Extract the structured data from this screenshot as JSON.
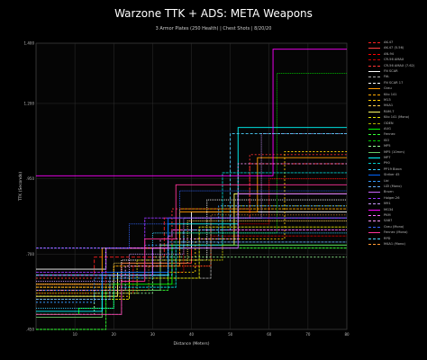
{
  "chart_data": {
    "type": "line",
    "title": "Warzone TTK + ADS: META Weapons",
    "subtitle": "3 Armor Plates (250 Health) | Chest Shots | 8/20/20",
    "xlabel": "Distance (Meters)",
    "ylabel": "TTK (Seconds)",
    "xlim": [
      0,
      80
    ],
    "ylim": [
      0.45,
      1.4
    ],
    "yticks": [
      {
        "v": 0.45,
        "t": ".450"
      },
      {
        "v": 0.7,
        "t": ".700"
      },
      {
        "v": 0.95,
        "t": ".950"
      },
      {
        "v": 1.2,
        "t": "1.200"
      },
      {
        "v": 1.4,
        "t": "1.400"
      }
    ],
    "xticks": [
      {
        "v": 10,
        "t": "10"
      },
      {
        "v": 20,
        "t": "20"
      },
      {
        "v": 30,
        "t": "30"
      },
      {
        "v": 40,
        "t": "40"
      },
      {
        "v": 50,
        "t": "50"
      },
      {
        "v": 60,
        "t": "60"
      },
      {
        "v": 70,
        "t": "70"
      },
      {
        "v": 80,
        "t": "80"
      }
    ],
    "grid": true,
    "legend_position": "right",
    "series": [
      {
        "name": "AK-47",
        "color": "#ff2020",
        "dash": "4,2",
        "steps": [
          [
            0,
            0.63
          ],
          [
            15,
            0.69
          ],
          [
            33,
            0.82
          ],
          [
            55,
            1.0
          ],
          [
            80,
            1.0
          ]
        ]
      },
      {
        "name": "AK-47 (5.56)",
        "color": "#ff4040",
        "dash": "",
        "steps": [
          [
            0,
            0.6
          ],
          [
            22,
            0.67
          ],
          [
            40,
            0.82
          ],
          [
            80,
            0.82
          ]
        ]
      },
      {
        "name": "AN-94",
        "color": "#ff0000",
        "dash": "1,1",
        "steps": [
          [
            0,
            0.58
          ],
          [
            18,
            0.64
          ],
          [
            38,
            0.8
          ],
          [
            60,
            0.95
          ],
          [
            80,
            0.95
          ]
        ]
      },
      {
        "name": "CR-56 AMAX",
        "color": "#cc0000",
        "dash": "3,1",
        "steps": [
          [
            0,
            0.57
          ],
          [
            25,
            0.66
          ],
          [
            45,
            0.76
          ],
          [
            80,
            0.76
          ]
        ]
      },
      {
        "name": "CR-56 AMAX (7.62)",
        "color": "#ff3333",
        "dash": "2,2",
        "steps": [
          [
            0,
            0.62
          ],
          [
            18,
            0.72
          ],
          [
            35,
            0.85
          ],
          [
            55,
            1.03
          ],
          [
            80,
            1.03
          ]
        ]
      },
      {
        "name": "FN SCAR",
        "color": "#ffffff",
        "dash": "",
        "steps": [
          [
            0,
            0.65
          ],
          [
            18,
            0.72
          ],
          [
            40,
            0.84
          ],
          [
            80,
            0.84
          ]
        ]
      },
      {
        "name": "FAL",
        "color": "#aaaaaa",
        "dash": "3,1",
        "steps": [
          [
            0,
            0.55
          ],
          [
            20,
            0.62
          ],
          [
            45,
            0.82
          ],
          [
            80,
            0.82
          ]
        ]
      },
      {
        "name": "FN SCAR 17",
        "color": "#ffffff",
        "dash": "1,1",
        "steps": [
          [
            0,
            0.59
          ],
          [
            22,
            0.68
          ],
          [
            44,
            0.88
          ],
          [
            80,
            0.88
          ]
        ]
      },
      {
        "name": "Grau",
        "color": "#ff9900",
        "dash": "",
        "steps": [
          [
            0,
            0.6
          ],
          [
            17,
            0.72
          ],
          [
            37,
            0.84
          ],
          [
            57,
            1.02
          ],
          [
            80,
            1.02
          ]
        ]
      },
      {
        "name": "Kilo 141",
        "color": "#ffaa00",
        "dash": "3,1",
        "steps": [
          [
            0,
            0.59
          ],
          [
            20,
            0.66
          ],
          [
            37,
            0.85
          ],
          [
            80,
            0.85
          ]
        ]
      },
      {
        "name": "M13",
        "color": "#ffcc00",
        "dash": "2,2",
        "steps": [
          [
            0,
            0.56
          ],
          [
            24,
            0.64
          ],
          [
            41,
            0.75
          ],
          [
            64,
            1.04
          ],
          [
            80,
            1.04
          ]
        ]
      },
      {
        "name": "M4A1",
        "color": "#ffd24d",
        "dash": "1,1",
        "steps": [
          [
            0,
            0.6
          ],
          [
            20,
            0.67
          ],
          [
            39,
            0.81
          ],
          [
            80,
            0.81
          ]
        ]
      },
      {
        "name": "RAM-7",
        "color": "#ffff66",
        "dash": "",
        "steps": [
          [
            0,
            0.56
          ],
          [
            21,
            0.64
          ],
          [
            32,
            0.73
          ],
          [
            51,
            0.9
          ],
          [
            80,
            0.9
          ]
        ]
      },
      {
        "name": "Kilo 141 (Mono)",
        "color": "#e6e600",
        "dash": "3,1",
        "steps": [
          [
            0,
            0.55
          ],
          [
            24,
            0.62
          ],
          [
            42,
            0.79
          ],
          [
            80,
            0.79
          ]
        ]
      },
      {
        "name": "ODEN",
        "color": "#b3b300",
        "dash": "2,1",
        "steps": [
          [
            0,
            0.57
          ],
          [
            26,
            0.68
          ],
          [
            48,
            0.86
          ],
          [
            80,
            0.86
          ]
        ]
      },
      {
        "name": "AUG",
        "color": "#00ff00",
        "dash": "",
        "steps": [
          [
            0,
            0.5
          ],
          [
            11,
            0.52
          ],
          [
            20,
            0.6
          ],
          [
            35,
            0.73
          ],
          [
            80,
            0.73
          ]
        ]
      },
      {
        "name": "Fennec",
        "color": "#33ff33",
        "dash": "3,1",
        "steps": [
          [
            0,
            0.45
          ],
          [
            18,
            0.58
          ],
          [
            34,
            0.72
          ],
          [
            80,
            0.72
          ]
        ]
      },
      {
        "name": "ISO",
        "color": "#00cc00",
        "dash": "1,1",
        "steps": [
          [
            0,
            0.5
          ],
          [
            18,
            0.6
          ],
          [
            36,
            0.77
          ],
          [
            62,
            1.3
          ],
          [
            80,
            1.3
          ]
        ]
      },
      {
        "name": "MP5",
        "color": "#99ff99",
        "dash": "2,2",
        "steps": [
          [
            0,
            0.5
          ],
          [
            15,
            0.57
          ],
          [
            30,
            0.69
          ],
          [
            80,
            0.69
          ]
        ]
      },
      {
        "name": "MP5 (10mm)",
        "color": "#66cc66",
        "dash": "",
        "steps": [
          [
            0,
            0.49
          ],
          [
            17,
            0.58
          ],
          [
            32,
            0.73
          ],
          [
            80,
            0.73
          ]
        ]
      },
      {
        "name": "MP7",
        "color": "#00ffff",
        "dash": "",
        "steps": [
          [
            0,
            0.51
          ],
          [
            17,
            0.63
          ],
          [
            34,
            0.8
          ],
          [
            52,
            1.12
          ],
          [
            80,
            1.12
          ]
        ]
      },
      {
        "name": "P90",
        "color": "#00cccc",
        "dash": "3,1",
        "steps": [
          [
            0,
            0.5
          ],
          [
            22,
            0.59
          ],
          [
            36,
            0.73
          ],
          [
            48,
            0.97
          ],
          [
            80,
            0.97
          ]
        ]
      },
      {
        "name": "PP19 Bizon",
        "color": "#33ccff",
        "dash": "1,1",
        "steps": [
          [
            0,
            0.52
          ],
          [
            20,
            0.62
          ],
          [
            30,
            0.77
          ],
          [
            80,
            0.77
          ]
        ]
      },
      {
        "name": "Striker 45",
        "color": "#0066ff",
        "dash": "",
        "steps": [
          [
            0,
            0.58
          ],
          [
            17,
            0.64
          ],
          [
            34,
            0.82
          ],
          [
            80,
            0.82
          ]
        ]
      },
      {
        "name": "Uzi",
        "color": "#3399ff",
        "dash": "2,2",
        "steps": [
          [
            0,
            0.54
          ],
          [
            15,
            0.62
          ],
          [
            28,
            0.73
          ],
          [
            47,
            0.86
          ],
          [
            80,
            0.86
          ]
        ]
      },
      {
        "name": "UZI (Mono)",
        "color": "#66b3ff",
        "dash": "3,1",
        "steps": [
          [
            0,
            0.55
          ],
          [
            19,
            0.63
          ],
          [
            34,
            0.74
          ],
          [
            80,
            0.74
          ]
        ]
      },
      {
        "name": "Bruen",
        "color": "#cc66ff",
        "dash": "",
        "steps": [
          [
            0,
            0.63
          ],
          [
            30,
            0.72
          ],
          [
            52,
            0.9
          ],
          [
            80,
            0.9
          ]
        ]
      },
      {
        "name": "Holger-26",
        "color": "#9933ff",
        "dash": "3,1",
        "steps": [
          [
            0,
            0.64
          ],
          [
            18,
            0.72
          ],
          [
            28,
            0.82
          ],
          [
            80,
            0.82
          ]
        ]
      },
      {
        "name": "M91",
        "color": "#cc99ff",
        "dash": "1,1",
        "steps": [
          [
            0,
            0.61
          ],
          [
            24,
            0.7
          ],
          [
            38,
            0.82
          ],
          [
            58,
            1.1
          ],
          [
            80,
            1.1
          ]
        ]
      },
      {
        "name": "MG34",
        "color": "#ff00ff",
        "dash": "",
        "steps": [
          [
            0,
            0.96
          ],
          [
            60,
            0.96
          ],
          [
            61,
            1.38
          ],
          [
            80,
            1.38
          ]
        ]
      },
      {
        "name": "PKM",
        "color": "#ff66ff",
        "dash": "3,1",
        "steps": [
          [
            0,
            0.72
          ],
          [
            34,
            0.76
          ],
          [
            35,
            0.78
          ],
          [
            80,
            0.78
          ]
        ]
      },
      {
        "name": "SA87",
        "color": "#ff99ff",
        "dash": "2,2",
        "steps": [
          [
            0,
            0.58
          ],
          [
            23,
            0.66
          ],
          [
            32,
            0.75
          ],
          [
            52,
            1.0
          ],
          [
            80,
            1.0
          ]
        ]
      },
      {
        "name": "Grau (Mono)",
        "color": "#3366ff",
        "dash": "1,1",
        "steps": [
          [
            0,
            0.72
          ],
          [
            24,
            0.8
          ],
          [
            37,
            0.91
          ],
          [
            80,
            0.91
          ]
        ]
      },
      {
        "name": "Fennec (Mono)",
        "color": "#ff3399",
        "dash": "",
        "steps": [
          [
            0,
            0.5
          ],
          [
            22,
            0.61
          ],
          [
            28,
            0.75
          ],
          [
            36,
            0.93
          ],
          [
            80,
            0.93
          ]
        ]
      },
      {
        "name": "RPD",
        "color": "#4dd2ff",
        "dash": "3,2",
        "steps": [
          [
            0,
            0.63
          ],
          [
            35,
            0.72
          ],
          [
            38,
            0.78
          ],
          [
            50,
            1.1
          ],
          [
            80,
            1.1
          ]
        ]
      },
      {
        "name": "M4A1 (Mono)",
        "color": "#ff9933",
        "dash": "1,2",
        "steps": [
          [
            0,
            0.58
          ],
          [
            29,
            0.66
          ],
          [
            45,
            0.83
          ],
          [
            80,
            0.83
          ]
        ]
      }
    ]
  }
}
